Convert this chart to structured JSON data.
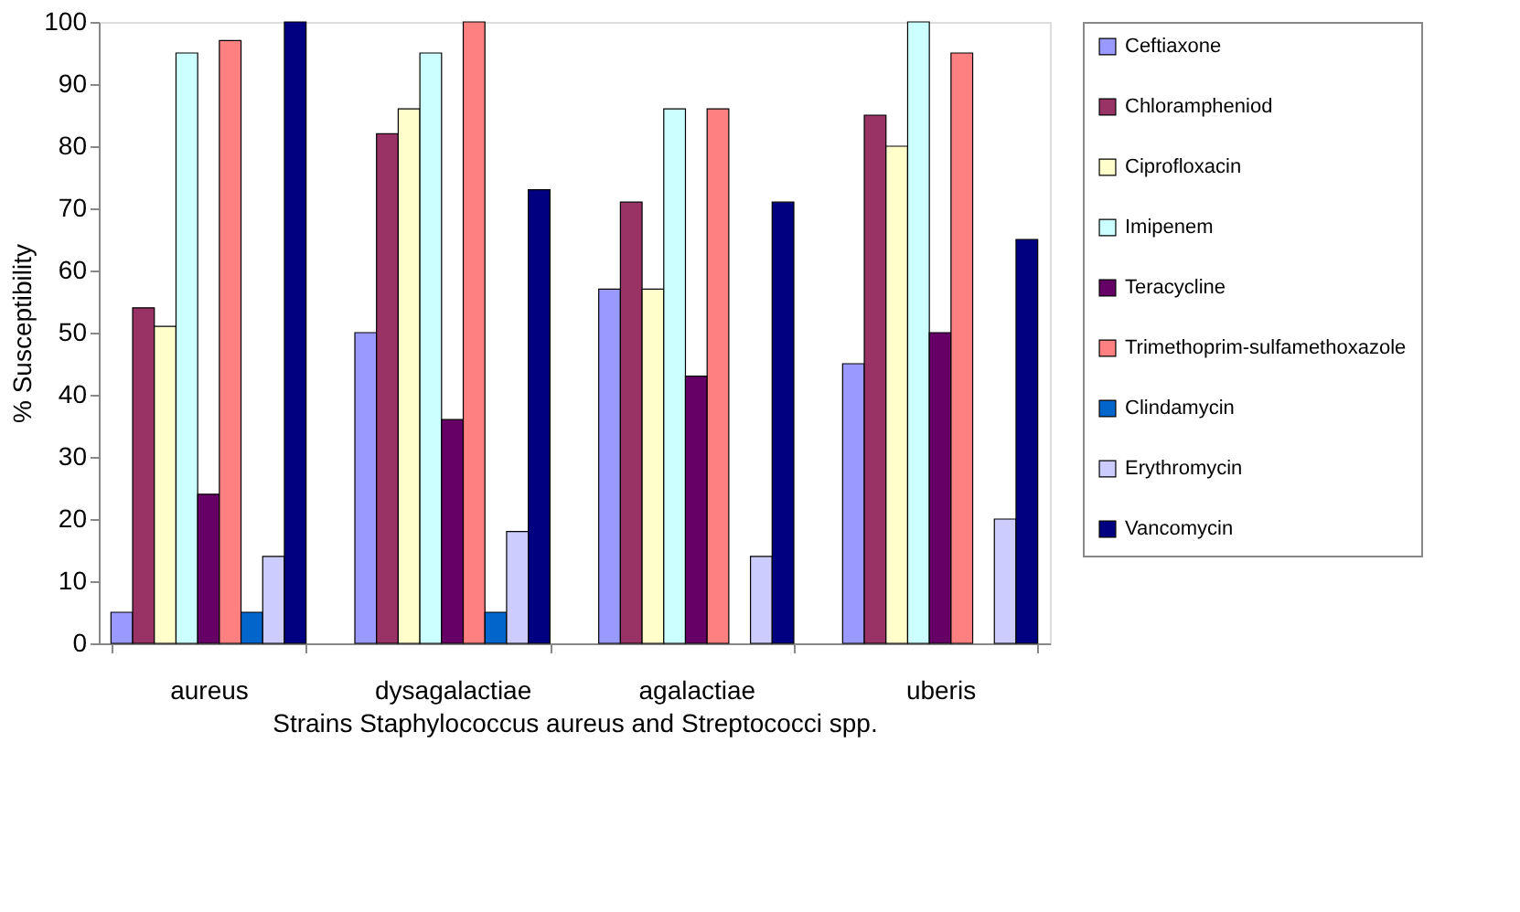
{
  "chart_data": {
    "type": "bar",
    "xlabel": "Strains Staphylococcus aureus and Streptococci spp.",
    "ylabel": "% Susceptibility",
    "categories": [
      "aureus",
      "dysagalactiae",
      "agalactiae",
      "uberis"
    ],
    "series": [
      {
        "name": "Ceftiaxone",
        "color": "#9999ff",
        "values": [
          5,
          50,
          57,
          45
        ]
      },
      {
        "name": "Chlorampheniod",
        "color": "#993366",
        "values": [
          54,
          82,
          71,
          85
        ]
      },
      {
        "name": "Ciprofloxacin",
        "color": "#ffffcc",
        "values": [
          51,
          86,
          57,
          80
        ]
      },
      {
        "name": "Imipenem",
        "color": "#ccffff",
        "values": [
          95,
          95,
          86,
          100
        ]
      },
      {
        "name": "Teracycline",
        "color": "#660066",
        "values": [
          24,
          36,
          43,
          50
        ]
      },
      {
        "name": "Trimethoprim-sulfamethoxazole",
        "color": "#ff8080",
        "values": [
          97,
          100,
          86,
          95
        ]
      },
      {
        "name": "Clindamycin",
        "color": "#0066cc",
        "values": [
          5,
          5,
          null,
          null
        ]
      },
      {
        "name": "Erythromycin",
        "color": "#ccccff",
        "values": [
          14,
          18,
          14,
          20
        ]
      },
      {
        "name": "Vancomycin",
        "color": "#000080",
        "values": [
          100,
          73,
          71,
          65
        ]
      }
    ],
    "ylim": [
      0,
      100
    ],
    "yticks": [
      0,
      10,
      20,
      30,
      40,
      50,
      60,
      70,
      80,
      90,
      100
    ],
    "grid": false,
    "legend": "right"
  }
}
